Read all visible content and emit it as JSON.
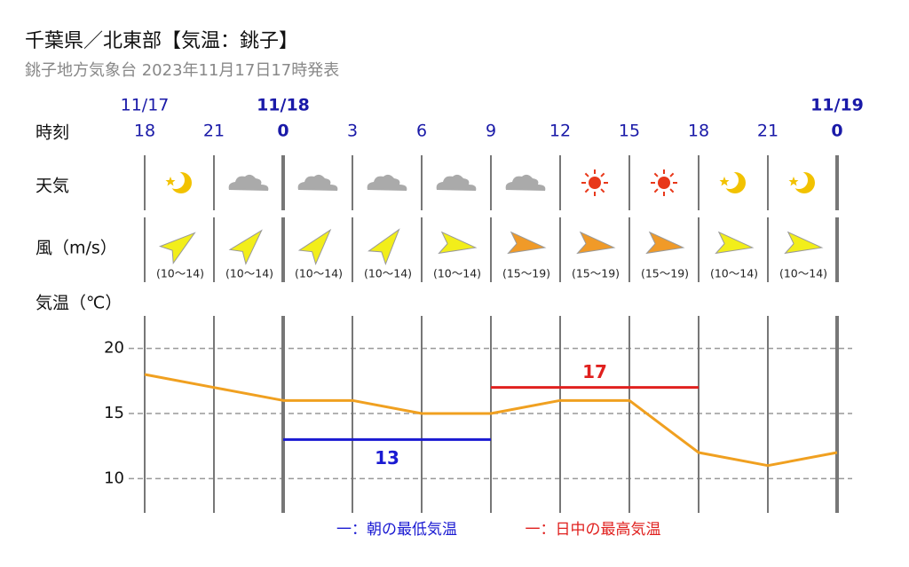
{
  "header": {
    "title": "千葉県／北東部【気温：銚子】",
    "subtitle": "銚子地方気象台 2023年11月17日17時発表"
  },
  "row_labels": {
    "time": "時刻",
    "weather": "天気",
    "wind": "風（m/s）",
    "temp": "気温（℃）"
  },
  "date_labels": [
    "11/17",
    null,
    "11/18",
    null,
    null,
    null,
    null,
    null,
    null,
    null,
    "11/19"
  ],
  "wind_speed": [
    "(10～14)",
    "(10～14)",
    "(10～14)",
    "(10～14)",
    "(10～14)",
    "(15～19)",
    "(15～19)",
    "(15～19)",
    "(10～14)",
    "(10～14)"
  ],
  "chart_data": {
    "type": "line",
    "categories": [
      "18",
      "21",
      "0",
      "3",
      "6",
      "9",
      "12",
      "15",
      "18",
      "21",
      "0"
    ],
    "values": [
      18,
      17,
      16,
      16,
      15,
      15,
      16,
      16,
      12,
      11,
      12
    ],
    "color": "#f0a020",
    "series": [
      {
        "name": "一：朝の最低気温",
        "color": "#1a1ad2",
        "values": [
          null,
          null,
          13,
          13,
          13,
          13,
          null,
          null,
          null,
          null,
          null
        ]
      },
      {
        "name": "一：日中の最高気温",
        "color": "#e0201e",
        "values": [
          null,
          null,
          null,
          null,
          null,
          17,
          17,
          17,
          17,
          null,
          null
        ]
      }
    ],
    "ylim": [
      7.5,
      22.5
    ],
    "yticks": [
      10,
      15,
      20
    ],
    "grid": true
  }
}
